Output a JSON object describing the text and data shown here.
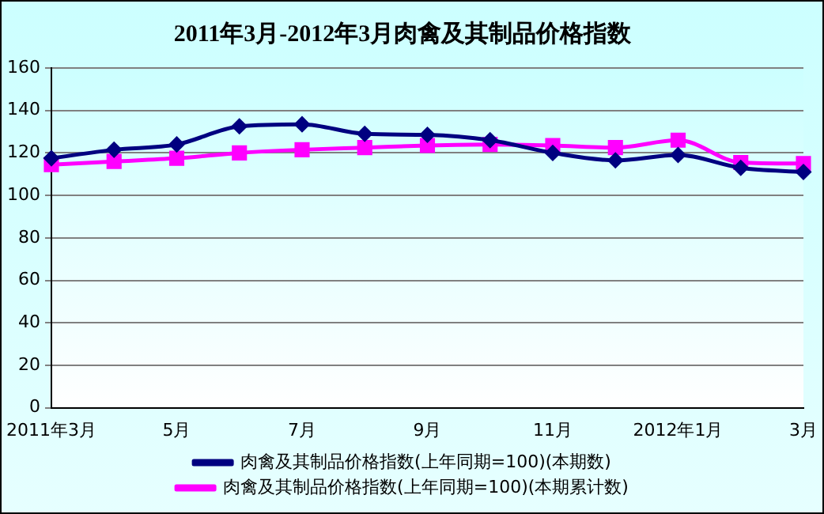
{
  "chart_data": {
    "type": "line",
    "title": "2011年3月-2012年3月肉禽及其制品价格指数",
    "categories": [
      "2011年3月",
      null,
      "5月",
      null,
      "7月",
      null,
      "9月",
      null,
      "11月",
      null,
      "2012年1月",
      null,
      "3月"
    ],
    "series": [
      {
        "name": "肉禽及其制品价格指数(上年同期=100)(本期数)",
        "color": "#000080",
        "marker": "diamond",
        "values": [
          117.5,
          121.5,
          124,
          132.5,
          133.5,
          129,
          128.5,
          126,
          120,
          116.5,
          119,
          113,
          111
        ]
      },
      {
        "name": "肉禽及其制品价格指数(上年同期=100)(本期累计数)",
        "color": "#ff00ff",
        "marker": "square",
        "values": [
          114.5,
          116,
          117.5,
          120,
          121.5,
          122.5,
          123.5,
          124,
          123.5,
          122.5,
          126,
          115.5,
          115
        ]
      }
    ],
    "ylim": [
      0,
      160
    ],
    "yticks": [
      0,
      20,
      40,
      60,
      80,
      100,
      120,
      140,
      160
    ],
    "grid": "y",
    "legend": "bottom",
    "line_style": "solid"
  }
}
